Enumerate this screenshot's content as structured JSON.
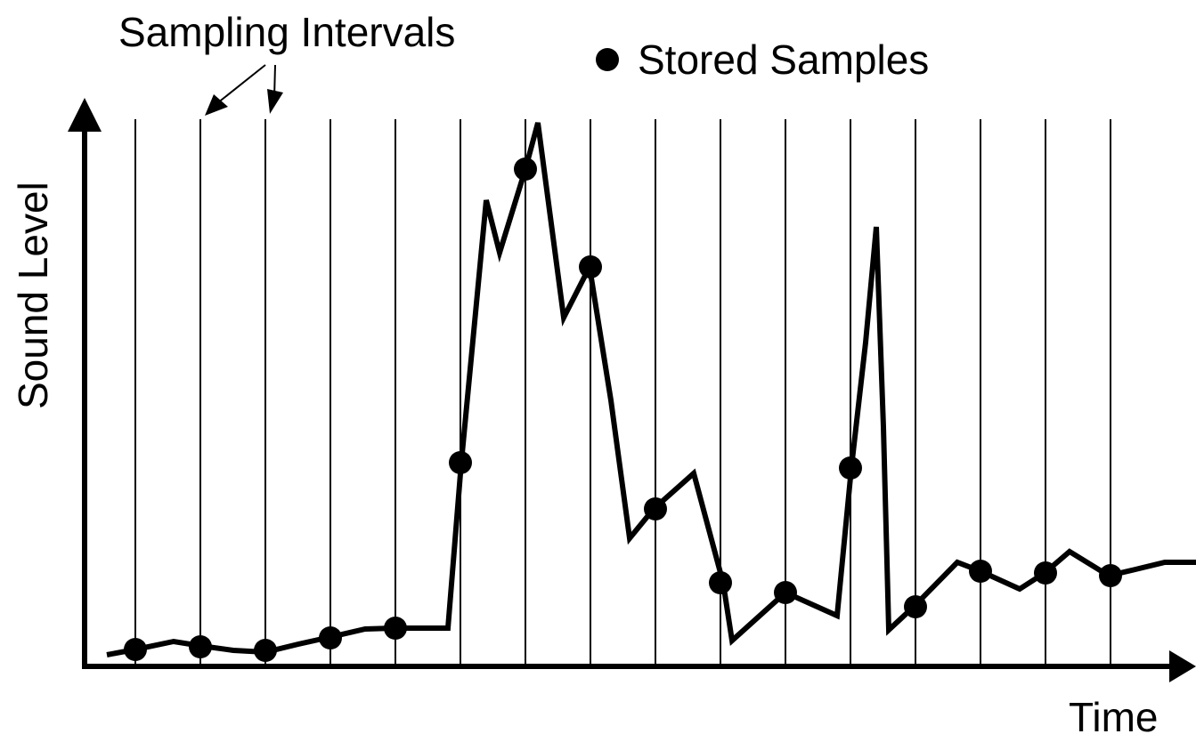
{
  "labels": {
    "sampling_intervals": "Sampling Intervals",
    "stored_samples": "Stored Samples",
    "y_axis": "Sound Level",
    "x_axis": "Time"
  },
  "colors": {
    "ink": "#000000",
    "background": "#ffffff"
  },
  "sample_count": 16
}
